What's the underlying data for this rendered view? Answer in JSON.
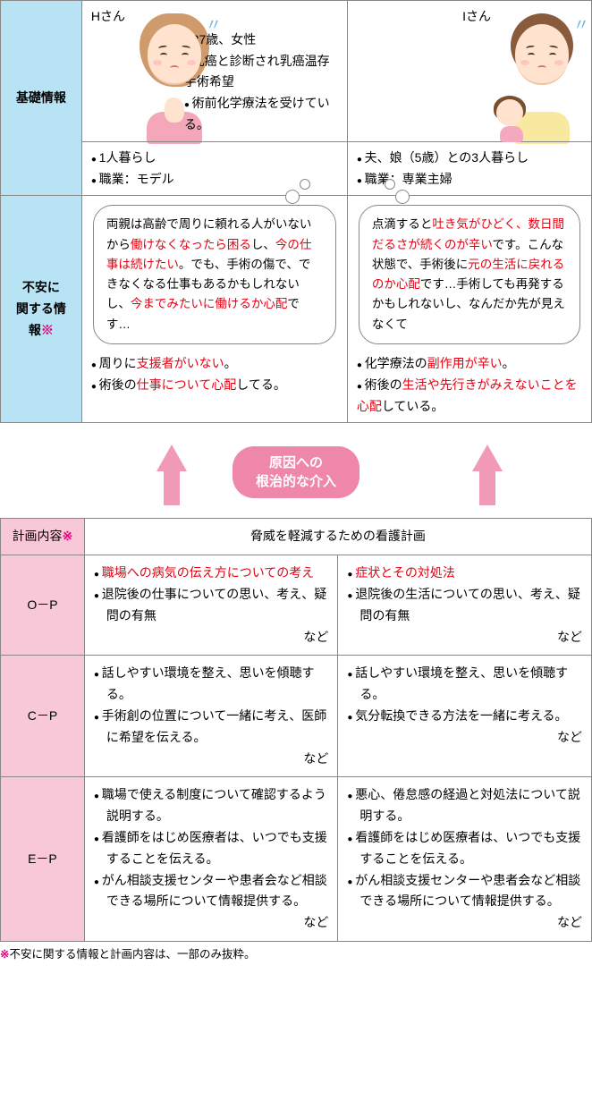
{
  "colors": {
    "header_blue": "#b8e3f4",
    "header_pink": "#f8c7d8",
    "accent_pink": "#ee87a9",
    "arrow_pink": "#f19ab8",
    "emphasis_red": "#e60012",
    "asterisk_magenta": "#e4007f",
    "border": "#888888"
  },
  "info": {
    "row1_label": "基礎情報",
    "row2_label": "不安に\n関する情報",
    "asterisk": "※",
    "patientH": {
      "label": "Hさん",
      "profile": [
        "37歳、女性",
        "乳癌と診断され乳癌温存手術希望",
        "術前化学療法を受けている。"
      ],
      "living": [
        "1人暮らし",
        "職業：モデル"
      ],
      "speech": [
        {
          "t": "両親は高齢で周りに頼れる人がいないから"
        },
        {
          "t": "働けなくなったら困る",
          "red": true
        },
        {
          "t": "し、"
        },
        {
          "t": "今の仕事は続けたい",
          "red": true
        },
        {
          "t": "。でも、手術の傷で、できなくなる仕事もあるかもしれないし、"
        },
        {
          "t": "今までみたいに働けるか心配",
          "red": true
        },
        {
          "t": "です…"
        }
      ],
      "anxiety": [
        [
          {
            "t": "周りに"
          },
          {
            "t": "支援者がいない",
            "red": true
          },
          {
            "t": "。"
          }
        ],
        [
          {
            "t": "術後の"
          },
          {
            "t": "仕事について心配",
            "red": true
          },
          {
            "t": "してる。"
          }
        ]
      ]
    },
    "patientI": {
      "label": "Iさん",
      "living": [
        "夫、娘（5歳）との3人暮らし",
        "職業：専業主婦"
      ],
      "speech": [
        {
          "t": "点滴すると"
        },
        {
          "t": "吐き気がひどく、数日間だるさが続くのが辛い",
          "red": true
        },
        {
          "t": "です。こんな状態で、手術後に"
        },
        {
          "t": "元の生活に戻れるのか心配",
          "red": true
        },
        {
          "t": "です…手術しても再発するかもしれないし、なんだか先が見えなくて"
        }
      ],
      "anxiety": [
        [
          {
            "t": "化学療法の"
          },
          {
            "t": "副作用が辛い",
            "red": true
          },
          {
            "t": "。"
          }
        ],
        [
          {
            "t": "術後の"
          },
          {
            "t": "生活や先行きがみえないことを心配",
            "red": true
          },
          {
            "t": "している。"
          }
        ]
      ]
    }
  },
  "mid": {
    "label_line1": "原因への",
    "label_line2": "根治的な介入"
  },
  "plan": {
    "header_left": "計画内容",
    "header_right": "脅威を軽減するための看護計画",
    "rows": [
      {
        "label": "O－P",
        "h": [
          [
            {
              "t": "職場への病気の伝え方についての考え",
              "red": true
            }
          ],
          [
            {
              "t": "退院後の仕事についての思い、考え、疑問の有無"
            }
          ]
        ],
        "h_nado": "など",
        "i": [
          [
            {
              "t": "症状とその対処法",
              "red": true
            }
          ],
          [
            {
              "t": "退院後の生活についての思い、考え、疑問の有無"
            }
          ]
        ],
        "i_nado": "など"
      },
      {
        "label": "C－P",
        "h": [
          [
            {
              "t": "話しやすい環境を整え、思いを傾聴する。"
            }
          ],
          [
            {
              "t": "手術創の位置について一緒に考え、医師に希望を伝える。"
            }
          ]
        ],
        "h_nado": "など",
        "i": [
          [
            {
              "t": "話しやすい環境を整え、思いを傾聴する。"
            }
          ],
          [
            {
              "t": "気分転換できる方法を一緒に考える。"
            }
          ]
        ],
        "i_nado": "など"
      },
      {
        "label": "E－P",
        "h": [
          [
            {
              "t": "職場で使える制度について確認するよう説明する。"
            }
          ],
          [
            {
              "t": "看護師をはじめ医療者は、いつでも支援することを伝える。"
            }
          ],
          [
            {
              "t": "がん相談支援センターや患者会など相談できる場所について情報提供する。"
            }
          ]
        ],
        "h_nado": "など",
        "i": [
          [
            {
              "t": "悪心、倦怠感の経過と対処法について説明する。"
            }
          ],
          [
            {
              "t": "看護師をはじめ医療者は、いつでも支援することを伝える。"
            }
          ],
          [
            {
              "t": "がん相談支援センターや患者会など相談できる場所について情報提供する。"
            }
          ]
        ],
        "i_nado": "など"
      }
    ]
  },
  "footnote": "不安に関する情報と計画内容は、一部のみ抜粋。"
}
